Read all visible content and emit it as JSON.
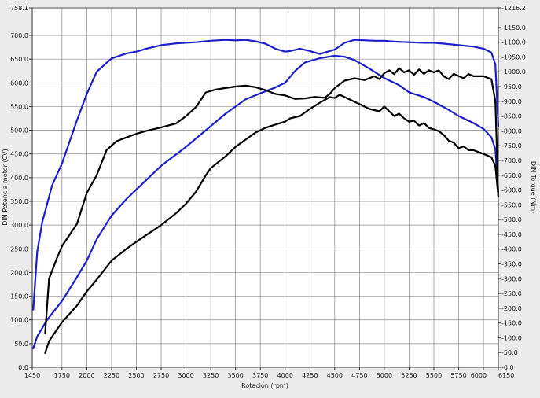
{
  "chart_data": {
    "type": "line",
    "title": "",
    "xlabel": "Rotación (rpm)",
    "ylabel_left": "DIN Potencia motor (CV)",
    "ylabel_right": "DIN Torque (Nm)",
    "xlim": [
      1450,
      6150
    ],
    "ylim_left": [
      0,
      758.1
    ],
    "ylim_right": [
      0,
      1216.2
    ],
    "grid": true,
    "x_ticks": [
      "1450",
      "1750",
      "2000",
      "2250",
      "2500",
      "2750",
      "3000",
      "3250",
      "3500",
      "3750",
      "4000",
      "4250",
      "4500",
      "4750",
      "5000",
      "5250",
      "5500",
      "5750",
      "6000",
      "6150"
    ],
    "y_left_ticks": [
      "0.0",
      "50.0",
      "100.0",
      "150.0",
      "200.0",
      "250.0",
      "300.0",
      "350.0",
      "400.0",
      "450.0",
      "500.0",
      "550.0",
      "600.0",
      "650.0",
      "700.0",
      "758.1"
    ],
    "y_right_ticks": [
      "0.0",
      "50.0",
      "100.0",
      "150.0",
      "200.0",
      "250.0",
      "300.0",
      "350.0",
      "400.0",
      "450.0",
      "500.0",
      "550.0",
      "600.0",
      "650.0",
      "700.0",
      "750.0",
      "800.0",
      "850.0",
      "900.0",
      "950.0",
      "1000.0",
      "1050.0",
      "1100.0",
      "1150.0",
      "1216.2"
    ],
    "series": [
      {
        "axis": "right",
        "color": "#1e1ec8",
        "values": [
          [
            1460,
            195
          ],
          [
            1500,
            390
          ],
          [
            1550,
            490
          ],
          [
            1650,
            615
          ],
          [
            1750,
            690
          ],
          [
            1900,
            835
          ],
          [
            2000,
            925
          ],
          [
            2100,
            1000
          ],
          [
            2250,
            1045
          ],
          [
            2400,
            1062
          ],
          [
            2500,
            1068
          ],
          [
            2600,
            1078
          ],
          [
            2750,
            1090
          ],
          [
            2900,
            1096
          ],
          [
            3000,
            1098
          ],
          [
            3100,
            1100
          ],
          [
            3250,
            1105
          ],
          [
            3400,
            1108
          ],
          [
            3500,
            1106
          ],
          [
            3600,
            1108
          ],
          [
            3700,
            1103
          ],
          [
            3800,
            1095
          ],
          [
            3900,
            1078
          ],
          [
            4000,
            1068
          ],
          [
            4050,
            1070
          ],
          [
            4150,
            1078
          ],
          [
            4250,
            1070
          ],
          [
            4350,
            1060
          ],
          [
            4500,
            1075
          ],
          [
            4600,
            1098
          ],
          [
            4700,
            1108
          ],
          [
            4900,
            1105
          ],
          [
            5000,
            1105
          ],
          [
            5100,
            1102
          ],
          [
            5250,
            1100
          ],
          [
            5400,
            1098
          ],
          [
            5500,
            1098
          ],
          [
            5600,
            1095
          ],
          [
            5750,
            1090
          ],
          [
            5900,
            1085
          ],
          [
            6000,
            1078
          ],
          [
            6080,
            1065
          ],
          [
            6120,
            1025
          ],
          [
            6150,
            815
          ]
        ]
      },
      {
        "axis": "left",
        "color": "#1e1ec8",
        "values": [
          [
            1460,
            40
          ],
          [
            1500,
            65
          ],
          [
            1600,
            100
          ],
          [
            1750,
            140
          ],
          [
            1900,
            190
          ],
          [
            2000,
            225
          ],
          [
            2100,
            270
          ],
          [
            2250,
            320
          ],
          [
            2400,
            355
          ],
          [
            2500,
            375
          ],
          [
            2750,
            425
          ],
          [
            3000,
            465
          ],
          [
            3200,
            500
          ],
          [
            3400,
            535
          ],
          [
            3600,
            565
          ],
          [
            3750,
            578
          ],
          [
            3900,
            590
          ],
          [
            4000,
            600
          ],
          [
            4100,
            625
          ],
          [
            4200,
            643
          ],
          [
            4350,
            652
          ],
          [
            4500,
            657
          ],
          [
            4600,
            655
          ],
          [
            4700,
            648
          ],
          [
            4850,
            630
          ],
          [
            5000,
            610
          ],
          [
            5150,
            595
          ],
          [
            5250,
            580
          ],
          [
            5400,
            570
          ],
          [
            5500,
            560
          ],
          [
            5650,
            543
          ],
          [
            5750,
            530
          ],
          [
            5900,
            515
          ],
          [
            6000,
            503
          ],
          [
            6080,
            485
          ],
          [
            6120,
            460
          ],
          [
            6150,
            360
          ]
        ]
      },
      {
        "axis": "right",
        "color": "#000000",
        "values": [
          [
            1580,
            115
          ],
          [
            1620,
            300
          ],
          [
            1700,
            370
          ],
          [
            1750,
            410
          ],
          [
            1900,
            485
          ],
          [
            2000,
            590
          ],
          [
            2100,
            650
          ],
          [
            2200,
            735
          ],
          [
            2300,
            765
          ],
          [
            2400,
            778
          ],
          [
            2500,
            790
          ],
          [
            2600,
            800
          ],
          [
            2750,
            812
          ],
          [
            2900,
            825
          ],
          [
            3000,
            850
          ],
          [
            3100,
            880
          ],
          [
            3200,
            930
          ],
          [
            3300,
            940
          ],
          [
            3400,
            945
          ],
          [
            3500,
            950
          ],
          [
            3600,
            953
          ],
          [
            3700,
            948
          ],
          [
            3800,
            938
          ],
          [
            3900,
            925
          ],
          [
            4000,
            920
          ],
          [
            4100,
            908
          ],
          [
            4200,
            910
          ],
          [
            4300,
            915
          ],
          [
            4400,
            912
          ],
          [
            4450,
            925
          ],
          [
            4500,
            945
          ],
          [
            4600,
            970
          ],
          [
            4700,
            978
          ],
          [
            4800,
            972
          ],
          [
            4900,
            985
          ],
          [
            4950,
            975
          ],
          [
            5000,
            995
          ],
          [
            5050,
            1005
          ],
          [
            5100,
            992
          ],
          [
            5150,
            1012
          ],
          [
            5200,
            998
          ],
          [
            5250,
            1005
          ],
          [
            5300,
            990
          ],
          [
            5350,
            1008
          ],
          [
            5400,
            993
          ],
          [
            5450,
            1005
          ],
          [
            5500,
            998
          ],
          [
            5550,
            1005
          ],
          [
            5600,
            985
          ],
          [
            5650,
            975
          ],
          [
            5700,
            993
          ],
          [
            5800,
            978
          ],
          [
            5850,
            992
          ],
          [
            5900,
            985
          ],
          [
            6000,
            985
          ],
          [
            6080,
            975
          ],
          [
            6120,
            900
          ],
          [
            6150,
            580
          ]
        ]
      },
      {
        "axis": "left",
        "color": "#000000",
        "values": [
          [
            1580,
            30
          ],
          [
            1620,
            55
          ],
          [
            1700,
            80
          ],
          [
            1750,
            95
          ],
          [
            1900,
            130
          ],
          [
            2000,
            160
          ],
          [
            2100,
            185
          ],
          [
            2250,
            225
          ],
          [
            2400,
            250
          ],
          [
            2500,
            265
          ],
          [
            2750,
            300
          ],
          [
            2900,
            325
          ],
          [
            3000,
            345
          ],
          [
            3100,
            370
          ],
          [
            3200,
            405
          ],
          [
            3250,
            420
          ],
          [
            3400,
            445
          ],
          [
            3500,
            465
          ],
          [
            3600,
            480
          ],
          [
            3700,
            495
          ],
          [
            3800,
            505
          ],
          [
            3900,
            512
          ],
          [
            4000,
            518
          ],
          [
            4050,
            525
          ],
          [
            4150,
            530
          ],
          [
            4250,
            545
          ],
          [
            4350,
            558
          ],
          [
            4450,
            570
          ],
          [
            4500,
            568
          ],
          [
            4550,
            575
          ],
          [
            4650,
            565
          ],
          [
            4750,
            555
          ],
          [
            4850,
            545
          ],
          [
            4950,
            540
          ],
          [
            5000,
            550
          ],
          [
            5050,
            540
          ],
          [
            5100,
            530
          ],
          [
            5150,
            535
          ],
          [
            5200,
            525
          ],
          [
            5250,
            518
          ],
          [
            5300,
            520
          ],
          [
            5350,
            510
          ],
          [
            5400,
            515
          ],
          [
            5450,
            505
          ],
          [
            5500,
            502
          ],
          [
            5550,
            498
          ],
          [
            5600,
            490
          ],
          [
            5650,
            478
          ],
          [
            5700,
            474
          ],
          [
            5750,
            462
          ],
          [
            5800,
            466
          ],
          [
            5850,
            458
          ],
          [
            5900,
            458
          ],
          [
            6000,
            450
          ],
          [
            6080,
            443
          ],
          [
            6120,
            425
          ],
          [
            6150,
            360
          ]
        ]
      }
    ]
  }
}
